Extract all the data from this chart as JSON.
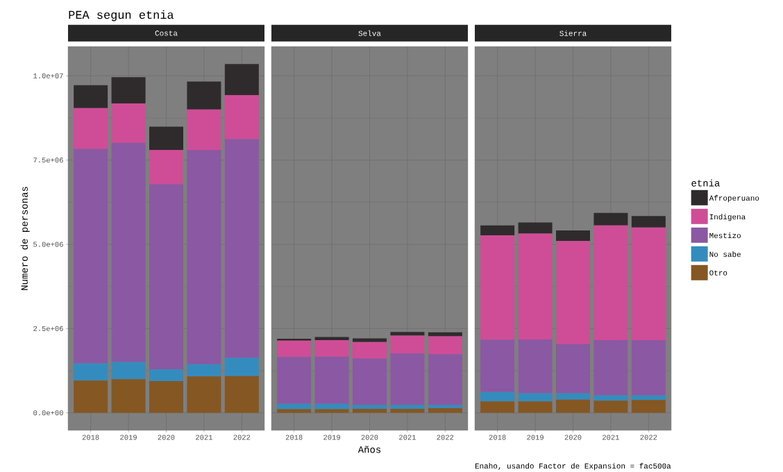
{
  "chart_data": [
    {
      "type": "bar",
      "title": "PEA segun etnia",
      "subtitle": "Costa",
      "ylabel": "Numero de personas",
      "categories": [
        "2018",
        "2019",
        "2020",
        "2021",
        "2022"
      ],
      "stacked": true,
      "grid": true,
      "ylim": [
        -520000,
        10870000
      ],
      "yticks": [
        {
          "value": 0,
          "label": "0.0e+00"
        },
        {
          "value": 2500000,
          "label": "2.5e+06"
        },
        {
          "value": 5000000,
          "label": "5.0e+06"
        },
        {
          "value": 7500000,
          "label": "7.5e+06"
        },
        {
          "value": 10000000,
          "label": "1.0e+07"
        }
      ],
      "series": [
        {
          "color": "#845723",
          "values": [
            960000,
            1000000,
            940000,
            1080000,
            1090000
          ]
        },
        {
          "color": "#348bbd",
          "values": [
            510000,
            510000,
            350000,
            360000,
            540000
          ]
        },
        {
          "color": "#8b58a3",
          "values": [
            6360000,
            6500000,
            5490000,
            6360000,
            6490000
          ]
        },
        {
          "color": "#cf4d97",
          "values": [
            1210000,
            1170000,
            1020000,
            1200000,
            1310000
          ]
        },
        {
          "color": "#2f2a2b",
          "values": [
            680000,
            780000,
            690000,
            830000,
            920000
          ]
        }
      ]
    },
    {
      "type": "bar",
      "subtitle": "Selva",
      "xlabel": "Años",
      "categories": [
        "2018",
        "2019",
        "2020",
        "2021",
        "2022"
      ],
      "stacked": true,
      "grid": true,
      "tick_labels": "x",
      "ylim": [
        -520000,
        10870000
      ],
      "yticks": [
        0,
        2500000,
        5000000,
        7500000,
        10000000
      ],
      "series": [
        {
          "color": "#845723",
          "values": [
            110000,
            110000,
            120000,
            120000,
            140000
          ]
        },
        {
          "color": "#348bbd",
          "values": [
            160000,
            160000,
            110000,
            110000,
            90000
          ]
        },
        {
          "color": "#8b58a3",
          "values": [
            1390000,
            1400000,
            1380000,
            1530000,
            1510000
          ]
        },
        {
          "color": "#cf4d97",
          "values": [
            480000,
            490000,
            490000,
            530000,
            530000
          ]
        },
        {
          "color": "#2f2a2b",
          "values": [
            60000,
            90000,
            110000,
            110000,
            120000
          ]
        }
      ]
    },
    {
      "type": "bar",
      "subtitle": "Sierra",
      "legend_title": "etnia",
      "legend": "right",
      "annotations": [
        "Enaho, usando Factor de Expansion = fac500a"
      ],
      "categories": [
        "2018",
        "2019",
        "2020",
        "2021",
        "2022"
      ],
      "stacked": true,
      "grid": true,
      "tick_labels": "x",
      "ylim": [
        -520000,
        10870000
      ],
      "yticks": [
        0,
        2500000,
        5000000,
        7500000,
        10000000
      ],
      "series": [
        {
          "name": "Otro",
          "color": "#845723",
          "values": [
            340000,
            340000,
            390000,
            360000,
            380000
          ]
        },
        {
          "name": "No sabe",
          "color": "#348bbd",
          "values": [
            280000,
            240000,
            190000,
            160000,
            140000
          ]
        },
        {
          "name": "Mestizo",
          "color": "#8b58a3",
          "values": [
            1550000,
            1600000,
            1460000,
            1640000,
            1640000
          ]
        },
        {
          "name": "Indigena",
          "color": "#cf4d97",
          "values": [
            3100000,
            3140000,
            3060000,
            3400000,
            3340000
          ]
        },
        {
          "name": "Afroperuano",
          "color": "#2f2a2b",
          "values": [
            290000,
            330000,
            310000,
            370000,
            340000
          ]
        }
      ]
    }
  ]
}
